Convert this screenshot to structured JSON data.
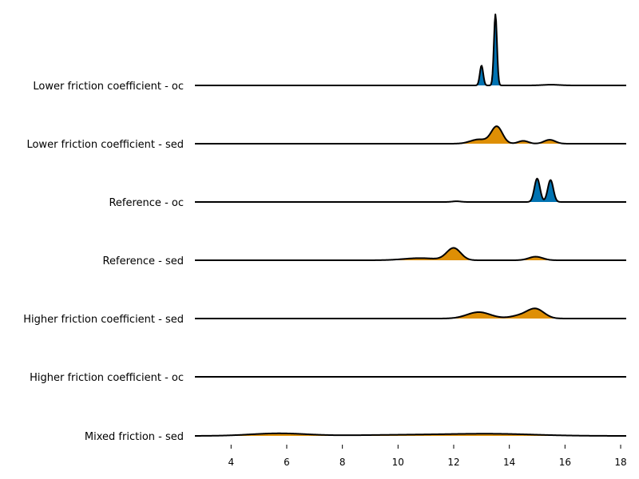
{
  "chart_data": {
    "type": "ridgeline",
    "title": "",
    "xlabel": "",
    "ylabel": "",
    "xlim": [
      2.7,
      18.2
    ],
    "x_ticks": [
      4,
      6,
      8,
      10,
      12,
      14,
      16,
      18
    ],
    "tick_labels": [
      "4",
      "6",
      "8",
      "10",
      "12",
      "14",
      "16",
      "18"
    ],
    "grid": false,
    "colors": {
      "oc": "#0173b2",
      "sed": "#de8f05",
      "line": "#000000"
    },
    "series": [
      {
        "name": "Lower friction coefficient - oc",
        "category": "oc",
        "peaks": [
          {
            "x": 13.0,
            "height": 0.28,
            "width": 0.06
          },
          {
            "x": 13.5,
            "height": 1.0,
            "width": 0.055
          },
          {
            "x": 15.5,
            "height": 0.01,
            "width": 0.3
          }
        ]
      },
      {
        "name": "Lower friction coefficient - sed",
        "category": "sed",
        "peaks": [
          {
            "x": 12.9,
            "height": 0.06,
            "width": 0.3
          },
          {
            "x": 13.55,
            "height": 0.24,
            "width": 0.2
          },
          {
            "x": 14.5,
            "height": 0.04,
            "width": 0.18
          },
          {
            "x": 15.45,
            "height": 0.055,
            "width": 0.2
          }
        ]
      },
      {
        "name": "Reference - oc",
        "category": "oc",
        "peaks": [
          {
            "x": 12.1,
            "height": 0.01,
            "width": 0.15
          },
          {
            "x": 15.0,
            "height": 0.33,
            "width": 0.1
          },
          {
            "x": 15.48,
            "height": 0.31,
            "width": 0.1
          }
        ]
      },
      {
        "name": "Reference - sed",
        "category": "sed",
        "peaks": [
          {
            "x": 10.8,
            "height": 0.03,
            "width": 0.6
          },
          {
            "x": 12.0,
            "height": 0.17,
            "width": 0.25
          },
          {
            "x": 14.95,
            "height": 0.05,
            "width": 0.25
          }
        ]
      },
      {
        "name": "Higher friction coefficient - sed",
        "category": "sed",
        "peaks": [
          {
            "x": 12.9,
            "height": 0.09,
            "width": 0.42
          },
          {
            "x": 14.95,
            "height": 0.13,
            "width": 0.3
          },
          {
            "x": 14.4,
            "height": 0.04,
            "width": 0.35
          }
        ]
      },
      {
        "name": "Higher friction coefficient - oc",
        "category": "oc",
        "peaks": []
      },
      {
        "name": "Mixed friction - sed",
        "category": "sed",
        "peaks": [
          {
            "x": 5.7,
            "height": 0.035,
            "width": 1.0
          },
          {
            "x": 10.5,
            "height": 0.015,
            "width": 2.0
          },
          {
            "x": 13.5,
            "height": 0.025,
            "width": 1.5
          }
        ]
      }
    ]
  }
}
